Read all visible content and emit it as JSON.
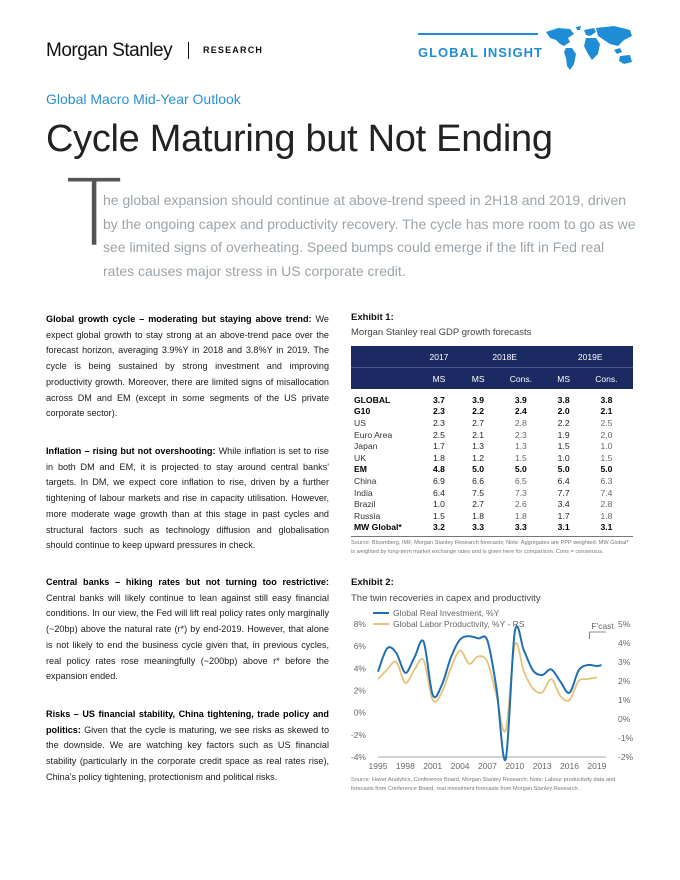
{
  "header": {
    "brand": "Morgan Stanley",
    "section": "RESEARCH",
    "series": "GLOBAL INSIGHT",
    "globe_icon": "world-map-icon"
  },
  "kicker": "Global Macro Mid-Year Outlook",
  "headline": "Cycle Maturing but Not Ending",
  "intro": {
    "dropcap": "T",
    "text": "he global expansion should continue at above-trend speed in 2H18 and 2019, driven by the ongoing capex and productivity recovery. The cycle has more room to go as we see limited signs of overheating. Speed bumps could emerge if the lift in Fed real rates causes major stress in US corporate credit."
  },
  "sections": [
    {
      "title": "Global growth cycle – moderating but staying above trend:",
      "body": " We expect global growth to stay strong at an above-trend pace over the forecast horizon, averaging 3.9%Y in 2018 and 3.8%Y in 2019. The cycle is being sustained by strong investment and improving productivity growth. Moreover, there are limited signs of misallocation across DM and EM (except in some segments of the US private corporate sector)."
    },
    {
      "title": "Inflation – rising but not overshooting:",
      "body": " While inflation is set to rise in both DM and EM, it is projected to stay around central banks' targets. In DM, we expect core inflation to rise, driven by a further tightening of labour markets and rise in capacity utilisation. However, more moderate wage growth than at this stage in past cycles and structural factors such as technology diffusion and globalisation should continue to keep upward pressures in check."
    },
    {
      "title": "Central banks – hiking rates but not turning too restrictive:",
      "body": " Central banks will likely continue to lean against still easy financial conditions. In our view, the Fed will lift real policy rates only marginally (~20bp) above the natural rate (r*) by end-2019. However, that alone is not likely to end the business cycle given that, in previous cycles, real policy rates rose meaningfully (~200bp) above r* before the expansion ended."
    },
    {
      "title": "Risks – US financial stability, China tightening, trade policy and politics:",
      "body": " Given that the cycle is maturing, we see risks as skewed to the downside. We are watching key factors such as US financial stability (particularly in the corporate credit space as real rates rise), China's policy tightening, protectionism and political risks."
    }
  ],
  "exhibit1": {
    "label": "Exhibit 1:",
    "title": "Morgan Stanley real GDP growth forecasts",
    "years": [
      "2017",
      "2018E",
      "2019E"
    ],
    "subheaders": [
      "MS",
      "MS",
      "Cons.",
      "MS",
      "Cons."
    ],
    "rows": [
      {
        "name": "GLOBAL",
        "bold": true,
        "v": [
          "3.7",
          "3.9",
          "3.9",
          "3.8",
          "3.8"
        ]
      },
      {
        "name": "G10",
        "bold": true,
        "v": [
          "2.3",
          "2.2",
          "2.4",
          "2.0",
          "2.1"
        ]
      },
      {
        "name": "US",
        "bold": false,
        "v": [
          "2.3",
          "2.7",
          "2.8",
          "2.2",
          "2.5"
        ]
      },
      {
        "name": "Euro Area",
        "bold": false,
        "v": [
          "2.5",
          "2.1",
          "2.3",
          "1.9",
          "2.0"
        ]
      },
      {
        "name": "Japan",
        "bold": false,
        "v": [
          "1.7",
          "1.3",
          "1.3",
          "1.5",
          "1.0"
        ]
      },
      {
        "name": "UK",
        "bold": false,
        "v": [
          "1.8",
          "1.2",
          "1.5",
          "1.0",
          "1.5"
        ]
      },
      {
        "name": "EM",
        "bold": true,
        "v": [
          "4.8",
          "5.0",
          "5.0",
          "5.0",
          "5.0"
        ]
      },
      {
        "name": "China",
        "bold": false,
        "v": [
          "6.9",
          "6.6",
          "6.5",
          "6.4",
          "6.3"
        ]
      },
      {
        "name": "India",
        "bold": false,
        "v": [
          "6.4",
          "7.5",
          "7.3",
          "7.7",
          "7.4"
        ]
      },
      {
        "name": "Brazil",
        "bold": false,
        "v": [
          "1.0",
          "2.7",
          "2.6",
          "3.4",
          "2.8"
        ]
      },
      {
        "name": "Russia",
        "bold": false,
        "v": [
          "1.5",
          "1.8",
          "1.8",
          "1.7",
          "1.8"
        ]
      },
      {
        "name": "MW Global*",
        "bold": true,
        "v": [
          "3.2",
          "3.3",
          "3.3",
          "3.1",
          "3.1"
        ]
      }
    ],
    "source": "Source: Bloomberg, IMF, Morgan Stanley Research forecasts; Note: Aggregates are PPP weighted. MW Global* is weighted by long-term market exchange rates and is given here for comparison. Cons = consensus."
  },
  "exhibit2": {
    "label": "Exhibit 2:",
    "title": "The twin recoveries in capex and productivity",
    "source": "Source: Haver Analytics, Conference Board, Morgan Stanley Research; Note: Labour productivity data and forecasts from Conference Board, real investment forecasts from Morgan Stanley Research."
  },
  "chart_data": {
    "type": "line",
    "title": "The twin recoveries in capex and productivity",
    "forecast_label": "F'cast",
    "forecast_start": 2018.2,
    "x_ticks": [
      1995,
      1998,
      2001,
      2004,
      2007,
      2010,
      2013,
      2016,
      2019
    ],
    "xlim": [
      1995,
      2020
    ],
    "y_left": {
      "ticks": [
        "8%",
        "6%",
        "4%",
        "2%",
        "0%",
        "-2%",
        "-4%"
      ],
      "lim": [
        -4,
        8
      ]
    },
    "y_right": {
      "ticks": [
        "5%",
        "4%",
        "3%",
        "2%",
        "1%",
        "0%",
        "-1%",
        "-2%"
      ],
      "lim": [
        -2,
        5
      ]
    },
    "grid": false,
    "legend": "top-left",
    "series": [
      {
        "name": "Global Real Investment, %Y",
        "axis": "left",
        "color": "#1f6fb2",
        "points": [
          [
            1995,
            3.7
          ],
          [
            1996,
            5.8
          ],
          [
            1997,
            5.4
          ],
          [
            1998,
            3.6
          ],
          [
            1999,
            5.0
          ],
          [
            2000,
            6.4
          ],
          [
            2001,
            1.6
          ],
          [
            2002,
            2.5
          ],
          [
            2003,
            5.0
          ],
          [
            2004,
            6.6
          ],
          [
            2005,
            6.9
          ],
          [
            2006,
            6.7
          ],
          [
            2007,
            6.5
          ],
          [
            2008,
            2.1
          ],
          [
            2009,
            -4.2
          ],
          [
            2010,
            7.3
          ],
          [
            2011,
            5.6
          ],
          [
            2012,
            3.8
          ],
          [
            2013,
            3.4
          ],
          [
            2014,
            3.9
          ],
          [
            2015,
            2.8
          ],
          [
            2016,
            1.8
          ],
          [
            2017,
            3.8
          ],
          [
            2018,
            4.3
          ],
          [
            2019,
            4.2
          ],
          [
            2019.5,
            4.3
          ]
        ]
      },
      {
        "name": "Global Labor Productivity, %Y - RS",
        "axis": "right",
        "color": "#e6c27a",
        "points": [
          [
            1995,
            2.1
          ],
          [
            1996,
            2.6
          ],
          [
            1997,
            3.0
          ],
          [
            1998,
            1.9
          ],
          [
            1999,
            2.6
          ],
          [
            2000,
            3.1
          ],
          [
            2001,
            1.0
          ],
          [
            2002,
            1.4
          ],
          [
            2003,
            2.7
          ],
          [
            2004,
            3.6
          ],
          [
            2005,
            2.9
          ],
          [
            2006,
            3.3
          ],
          [
            2007,
            3.0
          ],
          [
            2008,
            1.2
          ],
          [
            2009,
            -0.6
          ],
          [
            2010,
            3.9
          ],
          [
            2011,
            2.5
          ],
          [
            2012,
            1.6
          ],
          [
            2013,
            1.4
          ],
          [
            2014,
            2.1
          ],
          [
            2015,
            1.2
          ],
          [
            2016,
            1.0
          ],
          [
            2017,
            2.0
          ],
          [
            2018,
            2.1
          ],
          [
            2019,
            2.2
          ]
        ]
      }
    ]
  }
}
